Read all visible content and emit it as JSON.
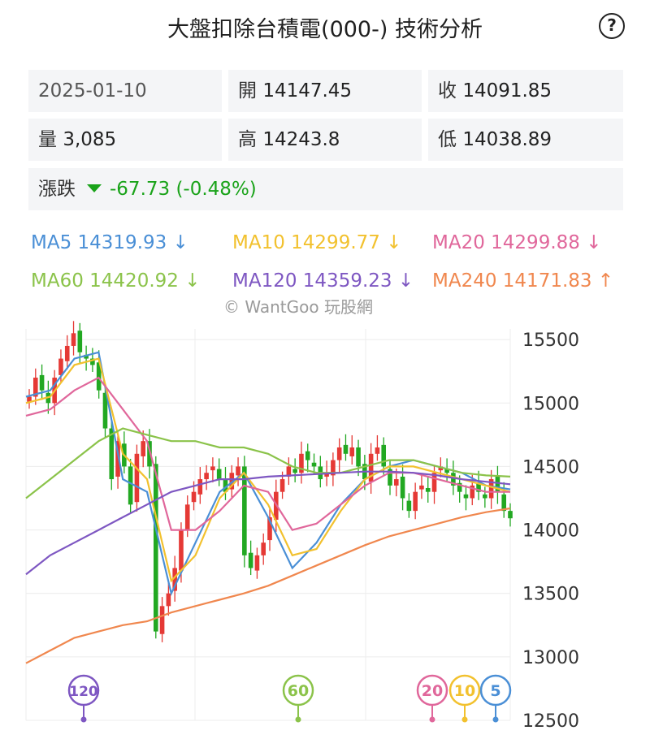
{
  "header": {
    "title": "大盤扣除台積電(000-) 技術分析",
    "help": "?"
  },
  "info": {
    "date": "2025-01-10",
    "open": {
      "label": "開",
      "value": "14147.45"
    },
    "close": {
      "label": "收",
      "value": "14091.85"
    },
    "volume": {
      "label": "量",
      "value": "3,085"
    },
    "high": {
      "label": "高",
      "value": "14243.8"
    },
    "low": {
      "label": "低",
      "value": "14038.89"
    },
    "change": {
      "label": "漲跌",
      "value": "-67.73 (-0.48%)"
    }
  },
  "ma_legend": [
    {
      "text": "MA5 14319.93 ↓",
      "color": "#4a8fd6"
    },
    {
      "text": "MA10 14299.77 ↓",
      "color": "#f2c12e"
    },
    {
      "text": "MA20 14299.88 ↓",
      "color": "#e0679b"
    },
    {
      "text": "MA60 14420.92 ↓",
      "color": "#8bc34a"
    },
    {
      "text": "MA120 14359.23 ↓",
      "color": "#7e57c2"
    },
    {
      "text": "MA240 14171.83 ↑",
      "color": "#f0874e"
    }
  ],
  "watermark": "© WantGoo 玩股網",
  "colors": {
    "up": "#e53935",
    "down": "#22a822",
    "grid": "#ececec"
  },
  "chart_data": {
    "type": "candlestick",
    "ylim": [
      12500,
      16000
    ],
    "yticks": [
      "12500",
      "13000",
      "13500",
      "14000",
      "14500",
      "15000",
      "15500",
      "16000"
    ],
    "close_approx": [
      15050,
      15200,
      15100,
      15000,
      15200,
      15350,
      15450,
      15550,
      15400,
      15350,
      15300,
      15100,
      14800,
      14400,
      14700,
      14500,
      14200,
      14600,
      14700,
      14500,
      13200,
      13400,
      13500,
      13700,
      14000,
      14200,
      14300,
      14400,
      14450,
      14500,
      14400,
      14300,
      14450,
      14500,
      13800,
      13700,
      13800,
      13900,
      14100,
      14300,
      14400,
      14500,
      14450,
      14600,
      14550,
      14500,
      14400,
      14450,
      14550,
      14650,
      14600,
      14650,
      14500,
      14400,
      14600,
      14650,
      14500,
      14350,
      14400,
      14250,
      14150,
      14300,
      14350,
      14300,
      14450,
      14500,
      14450,
      14350,
      14300,
      14250,
      14350,
      14300,
      14250,
      14400,
      14300,
      14150,
      14091.85
    ],
    "ma_lines": [
      {
        "name": "MA5",
        "color": "#4a8fd6",
        "points": [
          15050,
          15100,
          15350,
          15400,
          14400,
          14300,
          13500,
          13900,
          14300,
          14450,
          14100,
          13700,
          13900,
          14200,
          14400,
          14500,
          14550,
          14500,
          14450,
          14350,
          14320
        ]
      },
      {
        "name": "MA10",
        "color": "#f2c12e",
        "points": [
          15000,
          15050,
          15300,
          15350,
          14600,
          14400,
          13600,
          13800,
          14250,
          14450,
          14200,
          13800,
          13850,
          14150,
          14400,
          14500,
          14500,
          14450,
          14400,
          14350,
          14300
        ]
      },
      {
        "name": "MA20",
        "color": "#e0679b",
        "points": [
          14900,
          14950,
          15100,
          15200,
          14950,
          14700,
          14000,
          14000,
          14150,
          14350,
          14300,
          14000,
          14050,
          14200,
          14350,
          14450,
          14450,
          14400,
          14350,
          14300,
          14300
        ]
      },
      {
        "name": "MA60",
        "color": "#8bc34a",
        "points": [
          14250,
          14400,
          14550,
          14700,
          14800,
          14750,
          14700,
          14700,
          14650,
          14650,
          14600,
          14500,
          14450,
          14450,
          14500,
          14550,
          14550,
          14500,
          14450,
          14430,
          14420
        ]
      },
      {
        "name": "MA120",
        "color": "#7e57c2",
        "points": [
          13650,
          13800,
          13900,
          14000,
          14100,
          14200,
          14300,
          14350,
          14400,
          14400,
          14420,
          14430,
          14440,
          14450,
          14460,
          14460,
          14450,
          14430,
          14400,
          14380,
          14360
        ]
      },
      {
        "name": "MA240",
        "color": "#f0874e",
        "points": [
          12950,
          13050,
          13150,
          13200,
          13250,
          13280,
          13350,
          13400,
          13450,
          13500,
          13560,
          13640,
          13720,
          13800,
          13880,
          13950,
          14000,
          14050,
          14100,
          14140,
          14170
        ]
      }
    ],
    "period_markers": [
      {
        "label": "120",
        "color": "#7e57c2"
      },
      {
        "label": "60",
        "color": "#8bc34a"
      },
      {
        "label": "20",
        "color": "#e0679b"
      },
      {
        "label": "10",
        "color": "#f2c12e"
      },
      {
        "label": "5",
        "color": "#4a8fd6"
      }
    ]
  }
}
